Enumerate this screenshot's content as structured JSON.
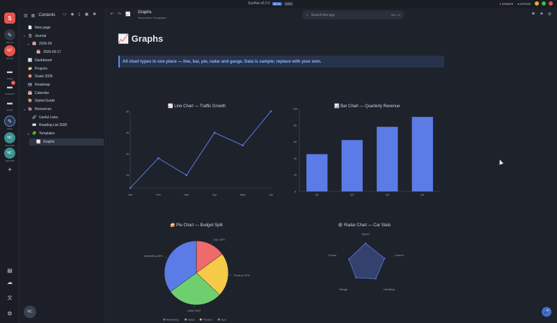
{
  "titlebar": {
    "app": "Synthia v0.2.0",
    "beta": "BETA",
    "web": "WEB",
    "donate": "DONATE",
    "github": "GITHUB"
  },
  "rail": {
    "items": [
      {
        "label": "Sky Lib",
        "icon": "brand-logo-icon"
      },
      {
        "label": "Sky Lib",
        "icon": "edit-icon"
      },
      {
        "label": "Sky Lib",
        "icon": "avatar-mt"
      },
      {
        "label": "notepo",
        "icon": "folder-icon"
      },
      {
        "label": "Synthtech",
        "icon": "folder-icon"
      },
      {
        "label": "scriptlo",
        "icon": "folder-icon"
      },
      {
        "label": "Vizivo",
        "icon": "edit-icon"
      },
      {
        "label": "New Vlab",
        "icon": "avatar-nc"
      },
      {
        "label": "New Vlab",
        "icon": "avatar-nc"
      }
    ],
    "mt_initials": "MT",
    "nc_initials": "NC"
  },
  "sidebar": {
    "header": "Contents",
    "items": [
      {
        "label": "New page",
        "icon": "📄",
        "depth": 0,
        "chev": ""
      },
      {
        "label": "Journal",
        "icon": "📓",
        "depth": 0,
        "chev": "▾"
      },
      {
        "label": "2026-09",
        "icon": "📅",
        "depth": 1,
        "chev": "▾"
      },
      {
        "label": "2026-09-17",
        "icon": "📅",
        "depth": 2,
        "chev": ""
      },
      {
        "label": "Dashboard",
        "icon": "📊",
        "depth": 0,
        "chev": ""
      },
      {
        "label": "Projects",
        "icon": "📁",
        "depth": 0,
        "chev": ""
      },
      {
        "label": "Goals 2026",
        "icon": "🎯",
        "depth": 0,
        "chev": ""
      },
      {
        "label": "Roadmap",
        "icon": "🗺",
        "depth": 0,
        "chev": ""
      },
      {
        "label": "Calendar",
        "icon": "📆",
        "depth": 0,
        "chev": ""
      },
      {
        "label": "Styled Guide",
        "icon": "🎨",
        "depth": 0,
        "chev": ""
      },
      {
        "label": "Resources",
        "icon": "📚",
        "depth": 0,
        "chev": "▾"
      },
      {
        "label": "Useful Links",
        "icon": "🔗",
        "depth": 1,
        "chev": ""
      },
      {
        "label": "Reading List 2026",
        "icon": "📖",
        "depth": 1,
        "chev": ""
      },
      {
        "label": "Templates",
        "icon": "🧩",
        "depth": 1,
        "chev": "▾"
      },
      {
        "label": "Graphs",
        "icon": "📈",
        "depth": 2,
        "chev": ""
      }
    ]
  },
  "header": {
    "title": "Graphs",
    "breadcrumb": "Resources / Templates",
    "search_placeholder": "Search the app",
    "search_kbd": "Ctrl + K"
  },
  "page": {
    "title": "📈 Graphs",
    "callout": "All chart types in one place — line, bar, pie, radar and gauge. Data is sample; replace with your own."
  },
  "chart_data": [
    {
      "type": "line",
      "title": "📈 Line Chart — Traffic Growth",
      "categories": [
        "Jan",
        "Feb",
        "Mar",
        "Apr",
        "May",
        "Jun"
      ],
      "values": [
        12,
        19,
        15,
        25,
        22,
        30
      ],
      "yticks": [
        "15",
        "20",
        "25",
        "30"
      ],
      "ylim": [
        12,
        30
      ],
      "color": "#5b7ce6"
    },
    {
      "type": "bar",
      "title": "📊 Bar Chart — Quarterly Revenue",
      "categories": [
        "Q1",
        "Q2",
        "Q3",
        "Q4"
      ],
      "values": [
        45,
        62,
        78,
        90
      ],
      "yticks": [
        "0",
        "20",
        "40",
        "60",
        "80",
        "100"
      ],
      "ylim": [
        0,
        100
      ],
      "color": "#5b7ce6"
    },
    {
      "type": "pie",
      "title": "🍰 Pie Chart — Budget Split",
      "slices": [
        {
          "name": "Marketing",
          "value": 35,
          "label": "Marketing 35%",
          "color": "#5b7ce6"
        },
        {
          "name": "Sales",
          "value": 28,
          "label": "Sales 28%",
          "color": "#6fcf6f"
        },
        {
          "name": "Product",
          "value": 22,
          "label": "Product 22%",
          "color": "#f7c948"
        },
        {
          "name": "Ops",
          "value": 15,
          "label": "Ops 15%",
          "color": "#ef6b6b"
        }
      ],
      "legend": [
        "Marketing",
        "Sales",
        "Product",
        "Ops"
      ]
    },
    {
      "type": "radar",
      "title": "🕸 Radar Chart — Car Stats",
      "axes": [
        "Speed",
        "Control",
        "Handling",
        "Range",
        "Power"
      ],
      "values": [
        85,
        80,
        70,
        65,
        70
      ],
      "max": 100,
      "color": "#5b7ce6"
    }
  ],
  "colors": {
    "accent": "#5b8def",
    "background": "#1e222b",
    "sidebar": "#1c1f27"
  }
}
